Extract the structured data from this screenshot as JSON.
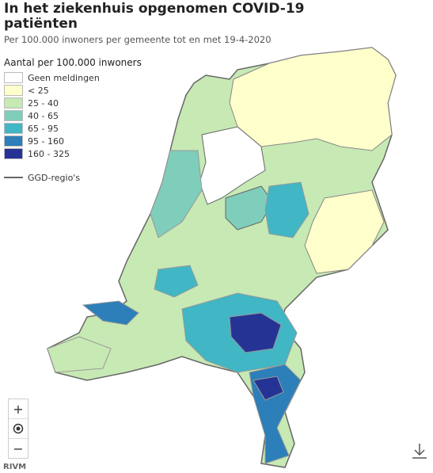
{
  "header": {
    "title": "In het ziekenhuis opgenomen COVID-19 patiënten",
    "subtitle": "Per 100.000 inwoners per gemeente tot en met 19-4-2020"
  },
  "legend": {
    "title": "Aantal per 100.000 inwoners",
    "items": [
      {
        "label": "Geen meldingen",
        "color": "#ffffff"
      },
      {
        "label": "< 25",
        "color": "#ffffcc"
      },
      {
        "label": "25 - 40",
        "color": "#c7e9b4"
      },
      {
        "label": "40 - 65",
        "color": "#7fcdbb"
      },
      {
        "label": "65 - 95",
        "color": "#41b6c4"
      },
      {
        "label": "95 - 160",
        "color": "#2c7fb8"
      },
      {
        "label": "160 - 325",
        "color": "#253494"
      }
    ],
    "line_label": "GGD-regio's",
    "line_color": "#666666"
  },
  "controls": {
    "zoom_in": "+",
    "zoom_out": "−"
  },
  "source": "RIVM"
}
